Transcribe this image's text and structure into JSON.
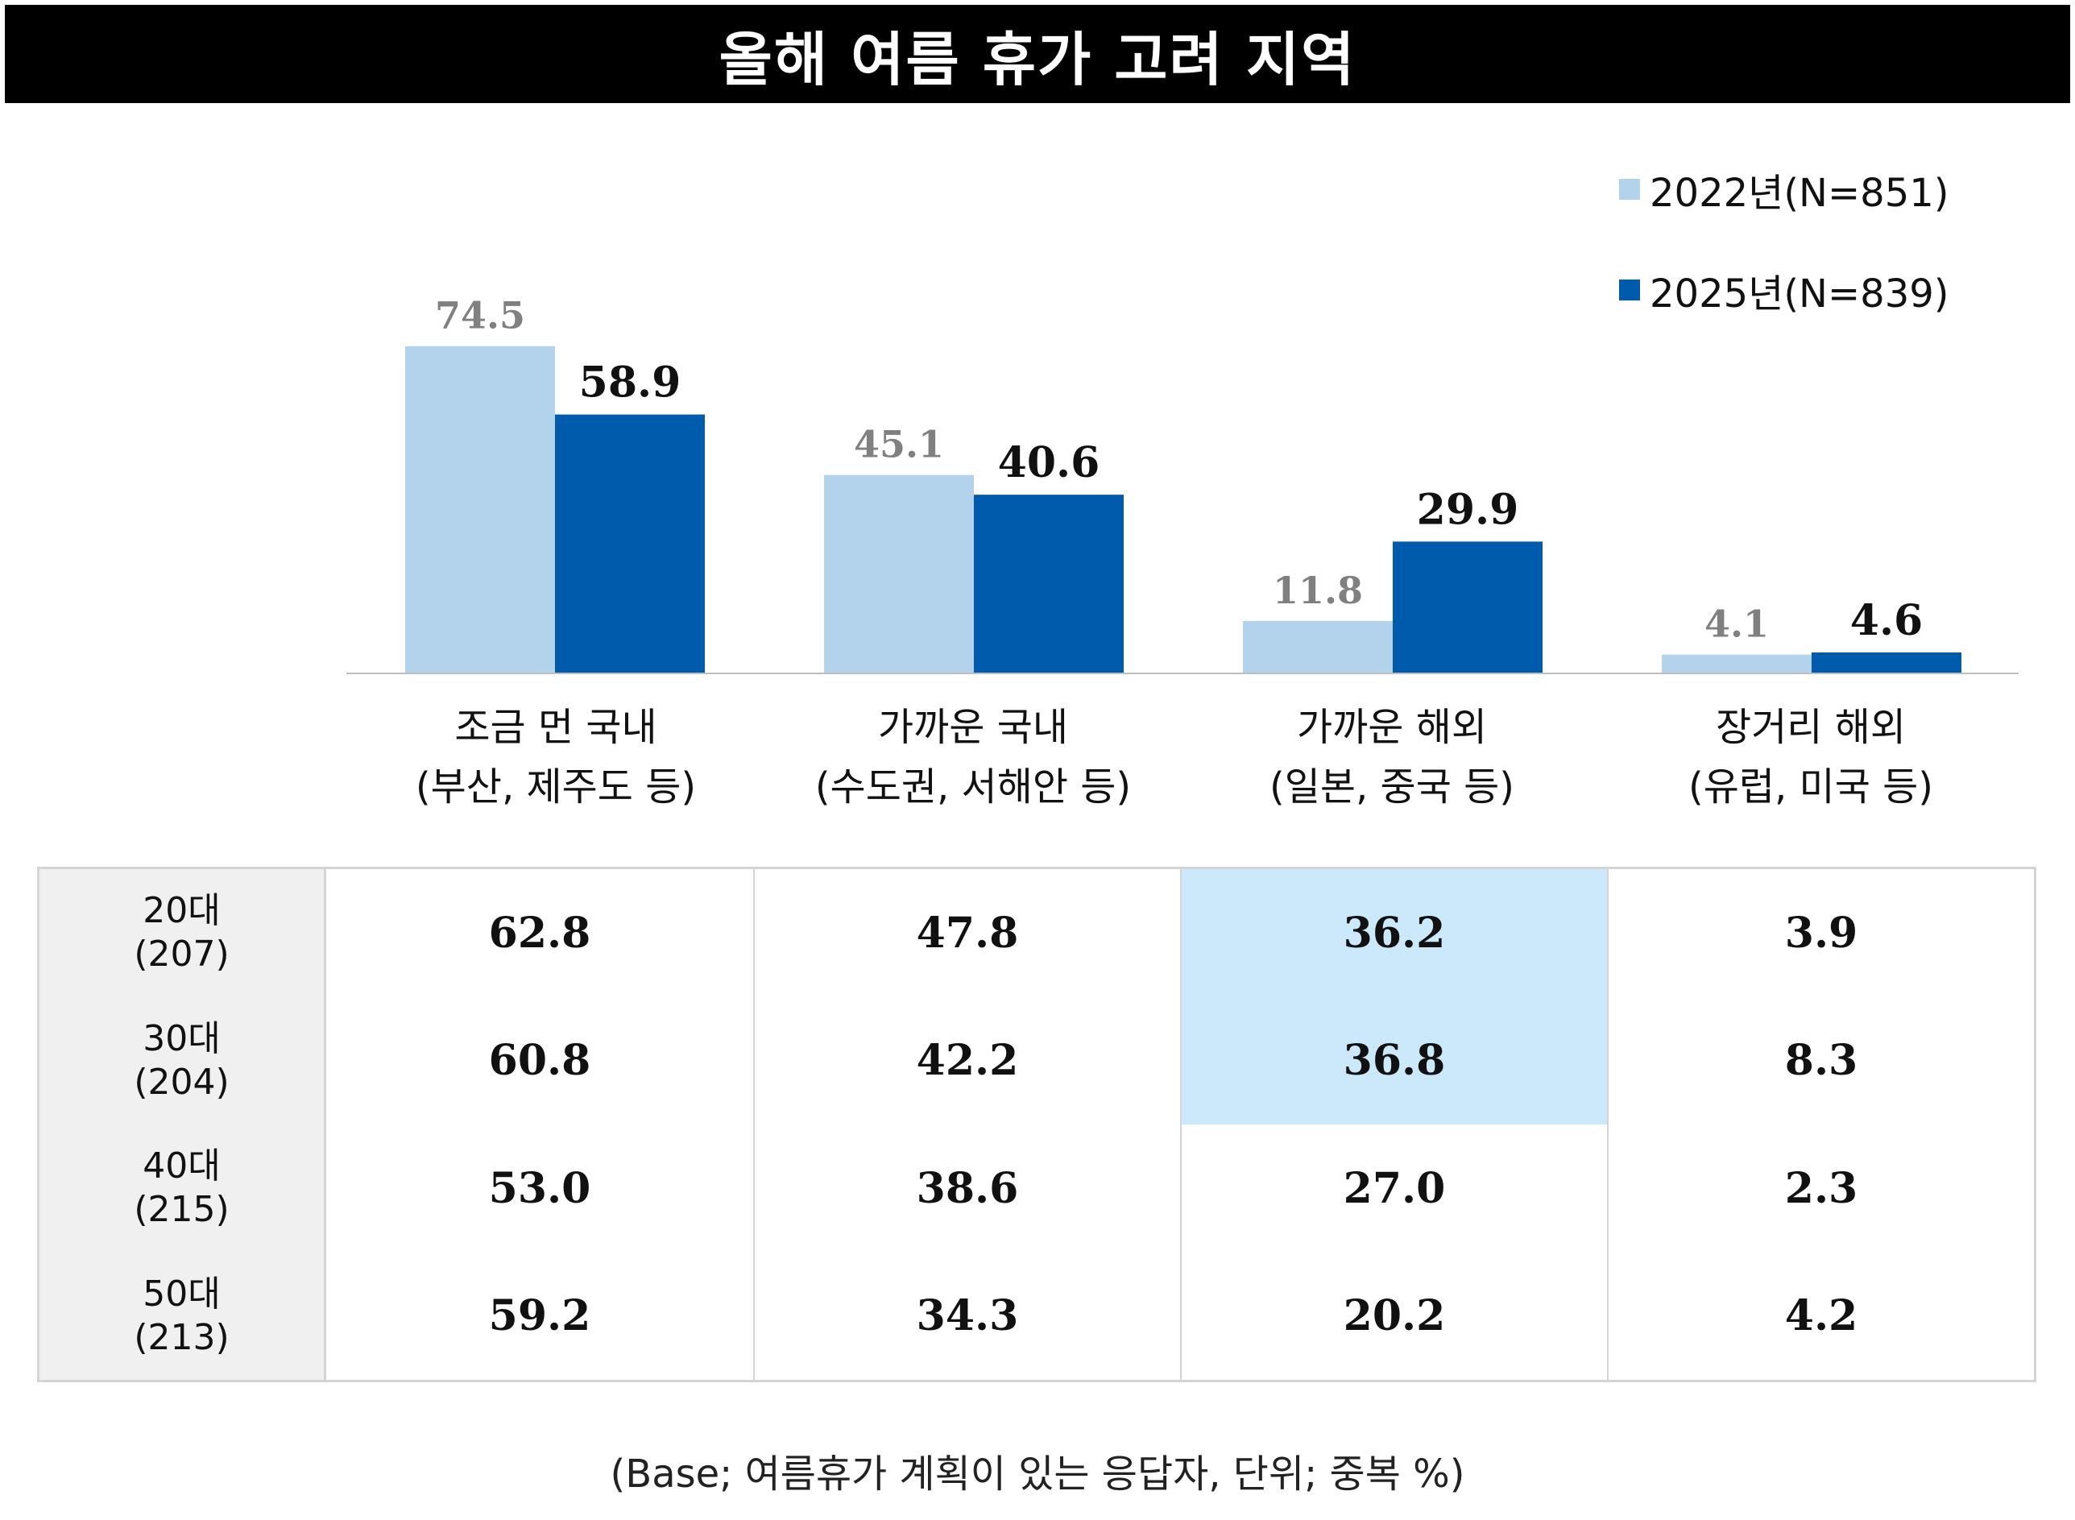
{
  "header": {
    "title": "올해 여름 휴가 고려 지역"
  },
  "colors": {
    "series_2022": "#b2d3eb",
    "series_2025": "#005bac",
    "label_2022": "#808080",
    "label_2025": "#111111",
    "highlight": "#cce9fb"
  },
  "chart_data": {
    "type": "bar",
    "title": "올해 여름 휴가 고려 지역",
    "categories": [
      {
        "line1": "조금 먼 국내",
        "line2": "(부산, 제주도 등)"
      },
      {
        "line1": "가까운 국내",
        "line2": "(수도권, 서해안 등)"
      },
      {
        "line1": "가까운 해외",
        "line2": "(일본, 중국 등)"
      },
      {
        "line1": "장거리 해외",
        "line2": "(유럽, 미국 등)"
      }
    ],
    "series": [
      {
        "name": "2022년(N=851)",
        "values": [
          74.5,
          45.1,
          11.8,
          4.1
        ]
      },
      {
        "name": "2025년(N=839)",
        "values": [
          58.9,
          40.6,
          29.9,
          4.6
        ]
      }
    ],
    "ylim": [
      0,
      80
    ],
    "legend_position": "top-right",
    "grid": false
  },
  "table": {
    "rows": [
      {
        "group": "20대",
        "n": "(207)",
        "values": [
          "62.8",
          "47.8",
          "36.2",
          "3.9"
        ],
        "highlight": [
          false,
          false,
          true,
          false
        ]
      },
      {
        "group": "30대",
        "n": "(204)",
        "values": [
          "60.8",
          "42.2",
          "36.8",
          "8.3"
        ],
        "highlight": [
          false,
          false,
          true,
          false
        ]
      },
      {
        "group": "40대",
        "n": "(215)",
        "values": [
          "53.0",
          "38.6",
          "27.0",
          "2.3"
        ],
        "highlight": [
          false,
          false,
          false,
          false
        ]
      },
      {
        "group": "50대",
        "n": "(213)",
        "values": [
          "59.2",
          "34.3",
          "20.2",
          "4.2"
        ],
        "highlight": [
          false,
          false,
          false,
          false
        ]
      }
    ]
  },
  "footnote": "(Base; 여름휴가 계획이 있는 응답자, 단위; 중복 %)"
}
